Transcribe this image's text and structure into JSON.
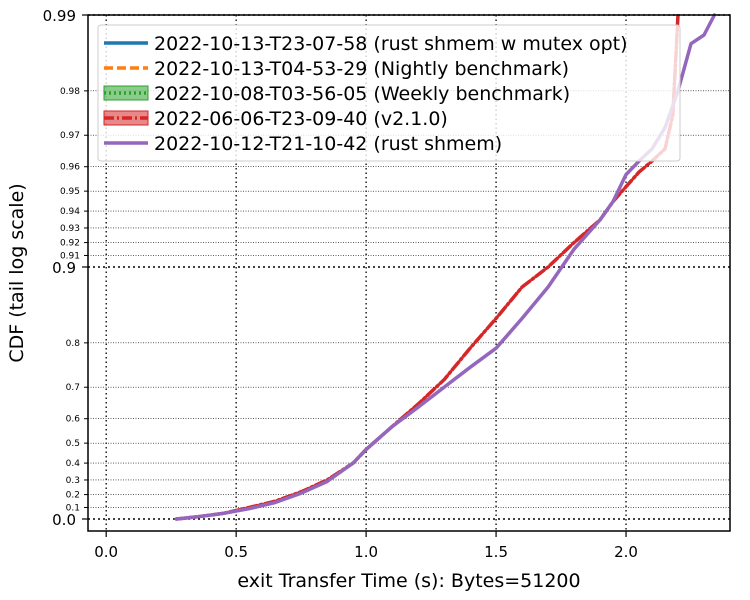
{
  "chart_data": {
    "type": "line",
    "title": "",
    "xlabel": "exit Transfer Time (s): Bytes=51200",
    "ylabel": "CDF (tail log scale)",
    "xlim": [
      -0.07,
      2.4
    ],
    "ylim": [
      -0.05,
      0.99
    ],
    "y_scale": "tail-log",
    "grid": true,
    "legend_position": "top-left",
    "x_ticks": [
      {
        "value": 0.0,
        "label": "0.0"
      },
      {
        "value": 0.5,
        "label": "0.5"
      },
      {
        "value": 1.0,
        "label": "1.0"
      },
      {
        "value": 1.5,
        "label": "1.5"
      },
      {
        "value": 2.0,
        "label": "2.0"
      }
    ],
    "y_major_ticks": [
      {
        "value": 0.0,
        "label": "0.0"
      },
      {
        "value": 0.9,
        "label": "0.9"
      },
      {
        "value": 0.99,
        "label": "0.99"
      }
    ],
    "y_minor_ticks": [
      {
        "value": 0.1,
        "label": "0.1"
      },
      {
        "value": 0.2,
        "label": "0.2"
      },
      {
        "value": 0.3,
        "label": "0.3"
      },
      {
        "value": 0.4,
        "label": "0.4"
      },
      {
        "value": 0.5,
        "label": "0.5"
      },
      {
        "value": 0.6,
        "label": "0.6"
      },
      {
        "value": 0.7,
        "label": "0.7"
      },
      {
        "value": 0.8,
        "label": "0.8"
      },
      {
        "value": 0.91,
        "label": "0.91"
      },
      {
        "value": 0.92,
        "label": "0.92"
      },
      {
        "value": 0.93,
        "label": "0.93"
      },
      {
        "value": 0.94,
        "label": "0.94"
      },
      {
        "value": 0.95,
        "label": "0.95"
      },
      {
        "value": 0.96,
        "label": "0.96"
      },
      {
        "value": 0.97,
        "label": "0.97"
      },
      {
        "value": 0.98,
        "label": "0.98"
      }
    ],
    "series": [
      {
        "name": "2022-10-13-T23-07-58 (rust shmem w mutex opt)",
        "color": "#1f77b4",
        "style": "solid",
        "legend_swatch": "line",
        "x": [],
        "y": []
      },
      {
        "name": "2022-10-13-T04-53-29 (Nightly benchmark)",
        "color": "#ff7f0e",
        "style": "dashed",
        "legend_swatch": "line",
        "x": [],
        "y": []
      },
      {
        "name": "2022-10-08-T03-56-05 (Weekly benchmark)",
        "color": "#2ca02c",
        "style": "dotted",
        "legend_swatch": "band",
        "x": [],
        "y": []
      },
      {
        "name": "2022-06-06-T23-09-40 (v2.1.0)",
        "color": "#d62728",
        "style": "dashdot",
        "legend_swatch": "band",
        "x": [
          0.27,
          0.35,
          0.45,
          0.55,
          0.65,
          0.75,
          0.85,
          0.95,
          1.0,
          1.1,
          1.2,
          1.3,
          1.4,
          1.5,
          1.6,
          1.7,
          1.8,
          1.9,
          1.95,
          2.0,
          2.05,
          2.1,
          2.15,
          2.18,
          2.2
        ],
        "y": [
          0.0,
          0.02,
          0.05,
          0.1,
          0.15,
          0.22,
          0.3,
          0.4,
          0.47,
          0.57,
          0.65,
          0.72,
          0.79,
          0.84,
          0.88,
          0.9,
          0.92,
          0.935,
          0.945,
          0.952,
          0.958,
          0.962,
          0.966,
          0.975,
          0.99
        ]
      },
      {
        "name": "2022-10-12-T21-10-42 (rust shmem)",
        "color": "#9467bd",
        "style": "solid",
        "legend_swatch": "line",
        "x": [
          0.27,
          0.35,
          0.45,
          0.55,
          0.65,
          0.75,
          0.85,
          0.95,
          1.0,
          1.1,
          1.2,
          1.3,
          1.4,
          1.5,
          1.6,
          1.7,
          1.8,
          1.9,
          1.95,
          2.0,
          2.05,
          2.1,
          2.15,
          2.2,
          2.25,
          2.3,
          2.34
        ],
        "y": [
          0.0,
          0.02,
          0.05,
          0.09,
          0.14,
          0.21,
          0.29,
          0.4,
          0.47,
          0.57,
          0.64,
          0.7,
          0.75,
          0.79,
          0.84,
          0.88,
          0.915,
          0.935,
          0.945,
          0.957,
          0.962,
          0.966,
          0.972,
          0.98,
          0.987,
          0.988,
          0.99
        ]
      }
    ]
  }
}
